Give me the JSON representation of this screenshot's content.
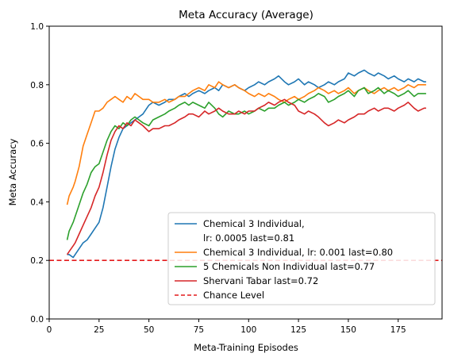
{
  "chart_data": {
    "type": "line",
    "title": "Meta Accuracy (Average)",
    "xlabel": "Meta-Training Episodes",
    "ylabel": "Meta Accuracy",
    "xlim": [
      0,
      197
    ],
    "ylim": [
      0,
      1.0
    ],
    "xticks": [
      "0",
      "25",
      "50",
      "75",
      "100",
      "125",
      "150",
      "175"
    ],
    "xtick_values": [
      0,
      25,
      50,
      75,
      100,
      125,
      150,
      175
    ],
    "yticks": [
      "0.0",
      "0.2",
      "0.4",
      "0.6",
      "0.8",
      "1.0"
    ],
    "ytick_values": [
      0.0,
      0.2,
      0.4,
      0.6,
      0.8,
      1.0
    ],
    "grid": false,
    "legend_position": "lower-right",
    "series": [
      {
        "name": "Chemical 3 Individual,\nlr: 0.0005 last=0.81",
        "color": "#1f77b4",
        "x": [
          9,
          10,
          12,
          13,
          15,
          17,
          19,
          21,
          23,
          25,
          27,
          29,
          31,
          33,
          35,
          37,
          39,
          41,
          43,
          45,
          47,
          50,
          52,
          55,
          58,
          60,
          63,
          65,
          68,
          70,
          72,
          75,
          78,
          80,
          83,
          85,
          87,
          90,
          93,
          95,
          98,
          100,
          103,
          105,
          108,
          110,
          113,
          115,
          118,
          120,
          123,
          125,
          128,
          130,
          133,
          135,
          138,
          140,
          143,
          145,
          148,
          150,
          153,
          155,
          158,
          160,
          163,
          165,
          168,
          170,
          173,
          175,
          178,
          180,
          183,
          185,
          188,
          189
        ],
        "y": [
          0.22,
          0.22,
          0.21,
          0.22,
          0.24,
          0.26,
          0.27,
          0.29,
          0.31,
          0.33,
          0.38,
          0.45,
          0.52,
          0.58,
          0.62,
          0.65,
          0.66,
          0.67,
          0.68,
          0.69,
          0.7,
          0.73,
          0.74,
          0.73,
          0.74,
          0.75,
          0.75,
          0.76,
          0.77,
          0.76,
          0.77,
          0.78,
          0.77,
          0.78,
          0.79,
          0.78,
          0.8,
          0.79,
          0.8,
          0.79,
          0.78,
          0.79,
          0.8,
          0.81,
          0.8,
          0.81,
          0.82,
          0.83,
          0.81,
          0.8,
          0.81,
          0.82,
          0.8,
          0.81,
          0.8,
          0.79,
          0.8,
          0.81,
          0.8,
          0.81,
          0.82,
          0.84,
          0.83,
          0.84,
          0.85,
          0.84,
          0.83,
          0.84,
          0.83,
          0.82,
          0.83,
          0.82,
          0.81,
          0.82,
          0.81,
          0.82,
          0.81,
          0.81
        ]
      },
      {
        "name": "Chemical 3 Individual, lr: 0.001 last=0.80",
        "color": "#ff7f0e",
        "x": [
          9,
          10,
          12,
          13,
          15,
          17,
          19,
          21,
          23,
          25,
          27,
          29,
          31,
          33,
          35,
          37,
          39,
          41,
          43,
          45,
          47,
          50,
          52,
          55,
          58,
          60,
          63,
          65,
          68,
          70,
          72,
          75,
          78,
          80,
          83,
          85,
          87,
          90,
          93,
          95,
          98,
          100,
          103,
          105,
          108,
          110,
          113,
          115,
          118,
          120,
          123,
          125,
          128,
          130,
          133,
          135,
          138,
          140,
          143,
          145,
          148,
          150,
          153,
          155,
          158,
          160,
          163,
          165,
          168,
          170,
          173,
          175,
          178,
          180,
          183,
          185,
          188,
          189
        ],
        "y": [
          0.39,
          0.42,
          0.45,
          0.47,
          0.52,
          0.59,
          0.63,
          0.67,
          0.71,
          0.71,
          0.72,
          0.74,
          0.75,
          0.76,
          0.75,
          0.74,
          0.76,
          0.75,
          0.77,
          0.76,
          0.75,
          0.75,
          0.74,
          0.74,
          0.75,
          0.74,
          0.75,
          0.76,
          0.76,
          0.77,
          0.78,
          0.79,
          0.78,
          0.8,
          0.79,
          0.81,
          0.8,
          0.79,
          0.8,
          0.79,
          0.78,
          0.77,
          0.76,
          0.77,
          0.76,
          0.77,
          0.76,
          0.75,
          0.74,
          0.75,
          0.76,
          0.75,
          0.76,
          0.77,
          0.78,
          0.79,
          0.78,
          0.77,
          0.78,
          0.77,
          0.78,
          0.79,
          0.77,
          0.78,
          0.79,
          0.78,
          0.77,
          0.78,
          0.79,
          0.78,
          0.79,
          0.78,
          0.79,
          0.8,
          0.79,
          0.8,
          0.8,
          0.8
        ]
      },
      {
        "name": "5 Chemicals Non Individual last=0.77",
        "color": "#2ca02c",
        "x": [
          9,
          10,
          12,
          13,
          15,
          17,
          19,
          21,
          23,
          25,
          27,
          29,
          31,
          33,
          35,
          37,
          39,
          41,
          43,
          45,
          47,
          50,
          52,
          55,
          58,
          60,
          63,
          65,
          68,
          70,
          72,
          75,
          78,
          80,
          83,
          85,
          87,
          90,
          93,
          95,
          98,
          100,
          103,
          105,
          108,
          110,
          113,
          115,
          118,
          120,
          123,
          125,
          128,
          130,
          133,
          135,
          138,
          140,
          143,
          145,
          148,
          150,
          153,
          155,
          158,
          160,
          163,
          165,
          168,
          170,
          173,
          175,
          178,
          180,
          183,
          185,
          188,
          189
        ],
        "y": [
          0.27,
          0.3,
          0.33,
          0.35,
          0.39,
          0.43,
          0.46,
          0.5,
          0.52,
          0.53,
          0.57,
          0.61,
          0.64,
          0.66,
          0.65,
          0.67,
          0.66,
          0.68,
          0.69,
          0.68,
          0.67,
          0.66,
          0.68,
          0.69,
          0.7,
          0.71,
          0.72,
          0.73,
          0.74,
          0.73,
          0.74,
          0.73,
          0.72,
          0.74,
          0.72,
          0.7,
          0.69,
          0.71,
          0.7,
          0.7,
          0.71,
          0.7,
          0.71,
          0.72,
          0.71,
          0.72,
          0.72,
          0.73,
          0.74,
          0.73,
          0.74,
          0.75,
          0.74,
          0.75,
          0.76,
          0.77,
          0.76,
          0.74,
          0.75,
          0.76,
          0.77,
          0.78,
          0.76,
          0.78,
          0.79,
          0.77,
          0.78,
          0.79,
          0.77,
          0.78,
          0.77,
          0.76,
          0.77,
          0.78,
          0.76,
          0.77,
          0.77,
          0.77
        ]
      },
      {
        "name": "Shervani Tabar last=0.72",
        "color": "#d62728",
        "x": [
          9,
          10,
          12,
          13,
          15,
          17,
          19,
          21,
          23,
          25,
          27,
          29,
          31,
          33,
          35,
          37,
          39,
          41,
          43,
          45,
          47,
          50,
          52,
          55,
          58,
          60,
          63,
          65,
          68,
          70,
          72,
          75,
          78,
          80,
          83,
          85,
          87,
          90,
          93,
          95,
          98,
          100,
          103,
          105,
          108,
          110,
          113,
          115,
          118,
          120,
          123,
          125,
          128,
          130,
          133,
          135,
          138,
          140,
          143,
          145,
          148,
          150,
          153,
          155,
          158,
          160,
          163,
          165,
          168,
          170,
          173,
          175,
          178,
          180,
          183,
          185,
          188,
          189
        ],
        "y": [
          0.22,
          0.23,
          0.25,
          0.26,
          0.29,
          0.32,
          0.35,
          0.38,
          0.42,
          0.45,
          0.5,
          0.56,
          0.61,
          0.64,
          0.66,
          0.65,
          0.67,
          0.66,
          0.68,
          0.67,
          0.66,
          0.64,
          0.65,
          0.65,
          0.66,
          0.66,
          0.67,
          0.68,
          0.69,
          0.7,
          0.7,
          0.69,
          0.71,
          0.7,
          0.71,
          0.72,
          0.71,
          0.7,
          0.7,
          0.71,
          0.7,
          0.71,
          0.71,
          0.72,
          0.73,
          0.74,
          0.73,
          0.74,
          0.75,
          0.74,
          0.73,
          0.71,
          0.7,
          0.71,
          0.7,
          0.69,
          0.67,
          0.66,
          0.67,
          0.68,
          0.67,
          0.68,
          0.69,
          0.7,
          0.7,
          0.71,
          0.72,
          0.71,
          0.72,
          0.72,
          0.71,
          0.72,
          0.73,
          0.74,
          0.72,
          0.71,
          0.72,
          0.72
        ]
      },
      {
        "name": "Chance Level",
        "color": "#e41a1c",
        "style": "dashed",
        "y_constant": 0.2
      }
    ]
  }
}
